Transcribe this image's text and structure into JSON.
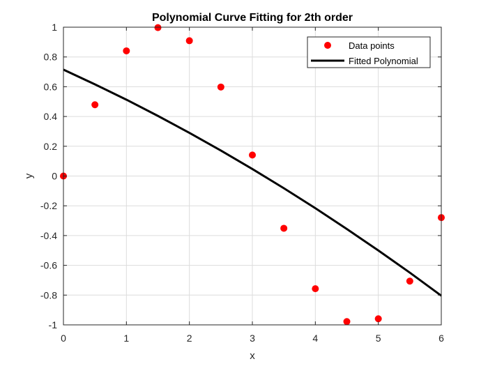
{
  "chart_data": {
    "type": "scatter",
    "title": "Polynomial Curve Fitting for 2th order",
    "xlabel": "x",
    "ylabel": "y",
    "xlim": [
      0,
      6
    ],
    "ylim": [
      -1,
      1
    ],
    "xticks": [
      0,
      1,
      2,
      3,
      4,
      5,
      6
    ],
    "yticks": [
      -1,
      -0.8,
      -0.6,
      -0.4,
      -0.2,
      0,
      0.2,
      0.4,
      0.6,
      0.8,
      1
    ],
    "xtick_labels": [
      "0",
      "1",
      "2",
      "3",
      "4",
      "5",
      "6"
    ],
    "ytick_labels": [
      "-1",
      "-0.8",
      "-0.6",
      "-0.4",
      "-0.2",
      "0",
      "0.2",
      "0.4",
      "0.6",
      "0.8",
      "1"
    ],
    "grid": true,
    "legend_position": "top-right",
    "series": [
      {
        "name": "Data points",
        "kind": "markers",
        "color": "#ff0000",
        "x": [
          0,
          0.5,
          1,
          1.5,
          2,
          2.5,
          3,
          3.5,
          4,
          4.5,
          5,
          5.5,
          6
        ],
        "y": [
          0,
          0.479,
          0.841,
          0.997,
          0.909,
          0.598,
          0.141,
          -0.351,
          -0.757,
          -0.978,
          -0.959,
          -0.706,
          -0.279
        ]
      },
      {
        "name": "Fitted Polynomial",
        "kind": "line",
        "color": "#000000",
        "x": [
          0,
          0.5,
          1,
          1.5,
          2,
          2.5,
          3,
          3.5,
          4,
          4.5,
          5,
          5.5,
          6
        ],
        "y": [
          0.715,
          0.616,
          0.513,
          0.404,
          0.29,
          0.171,
          0.047,
          -0.082,
          -0.216,
          -0.356,
          -0.5,
          -0.649,
          -0.804
        ]
      }
    ]
  }
}
